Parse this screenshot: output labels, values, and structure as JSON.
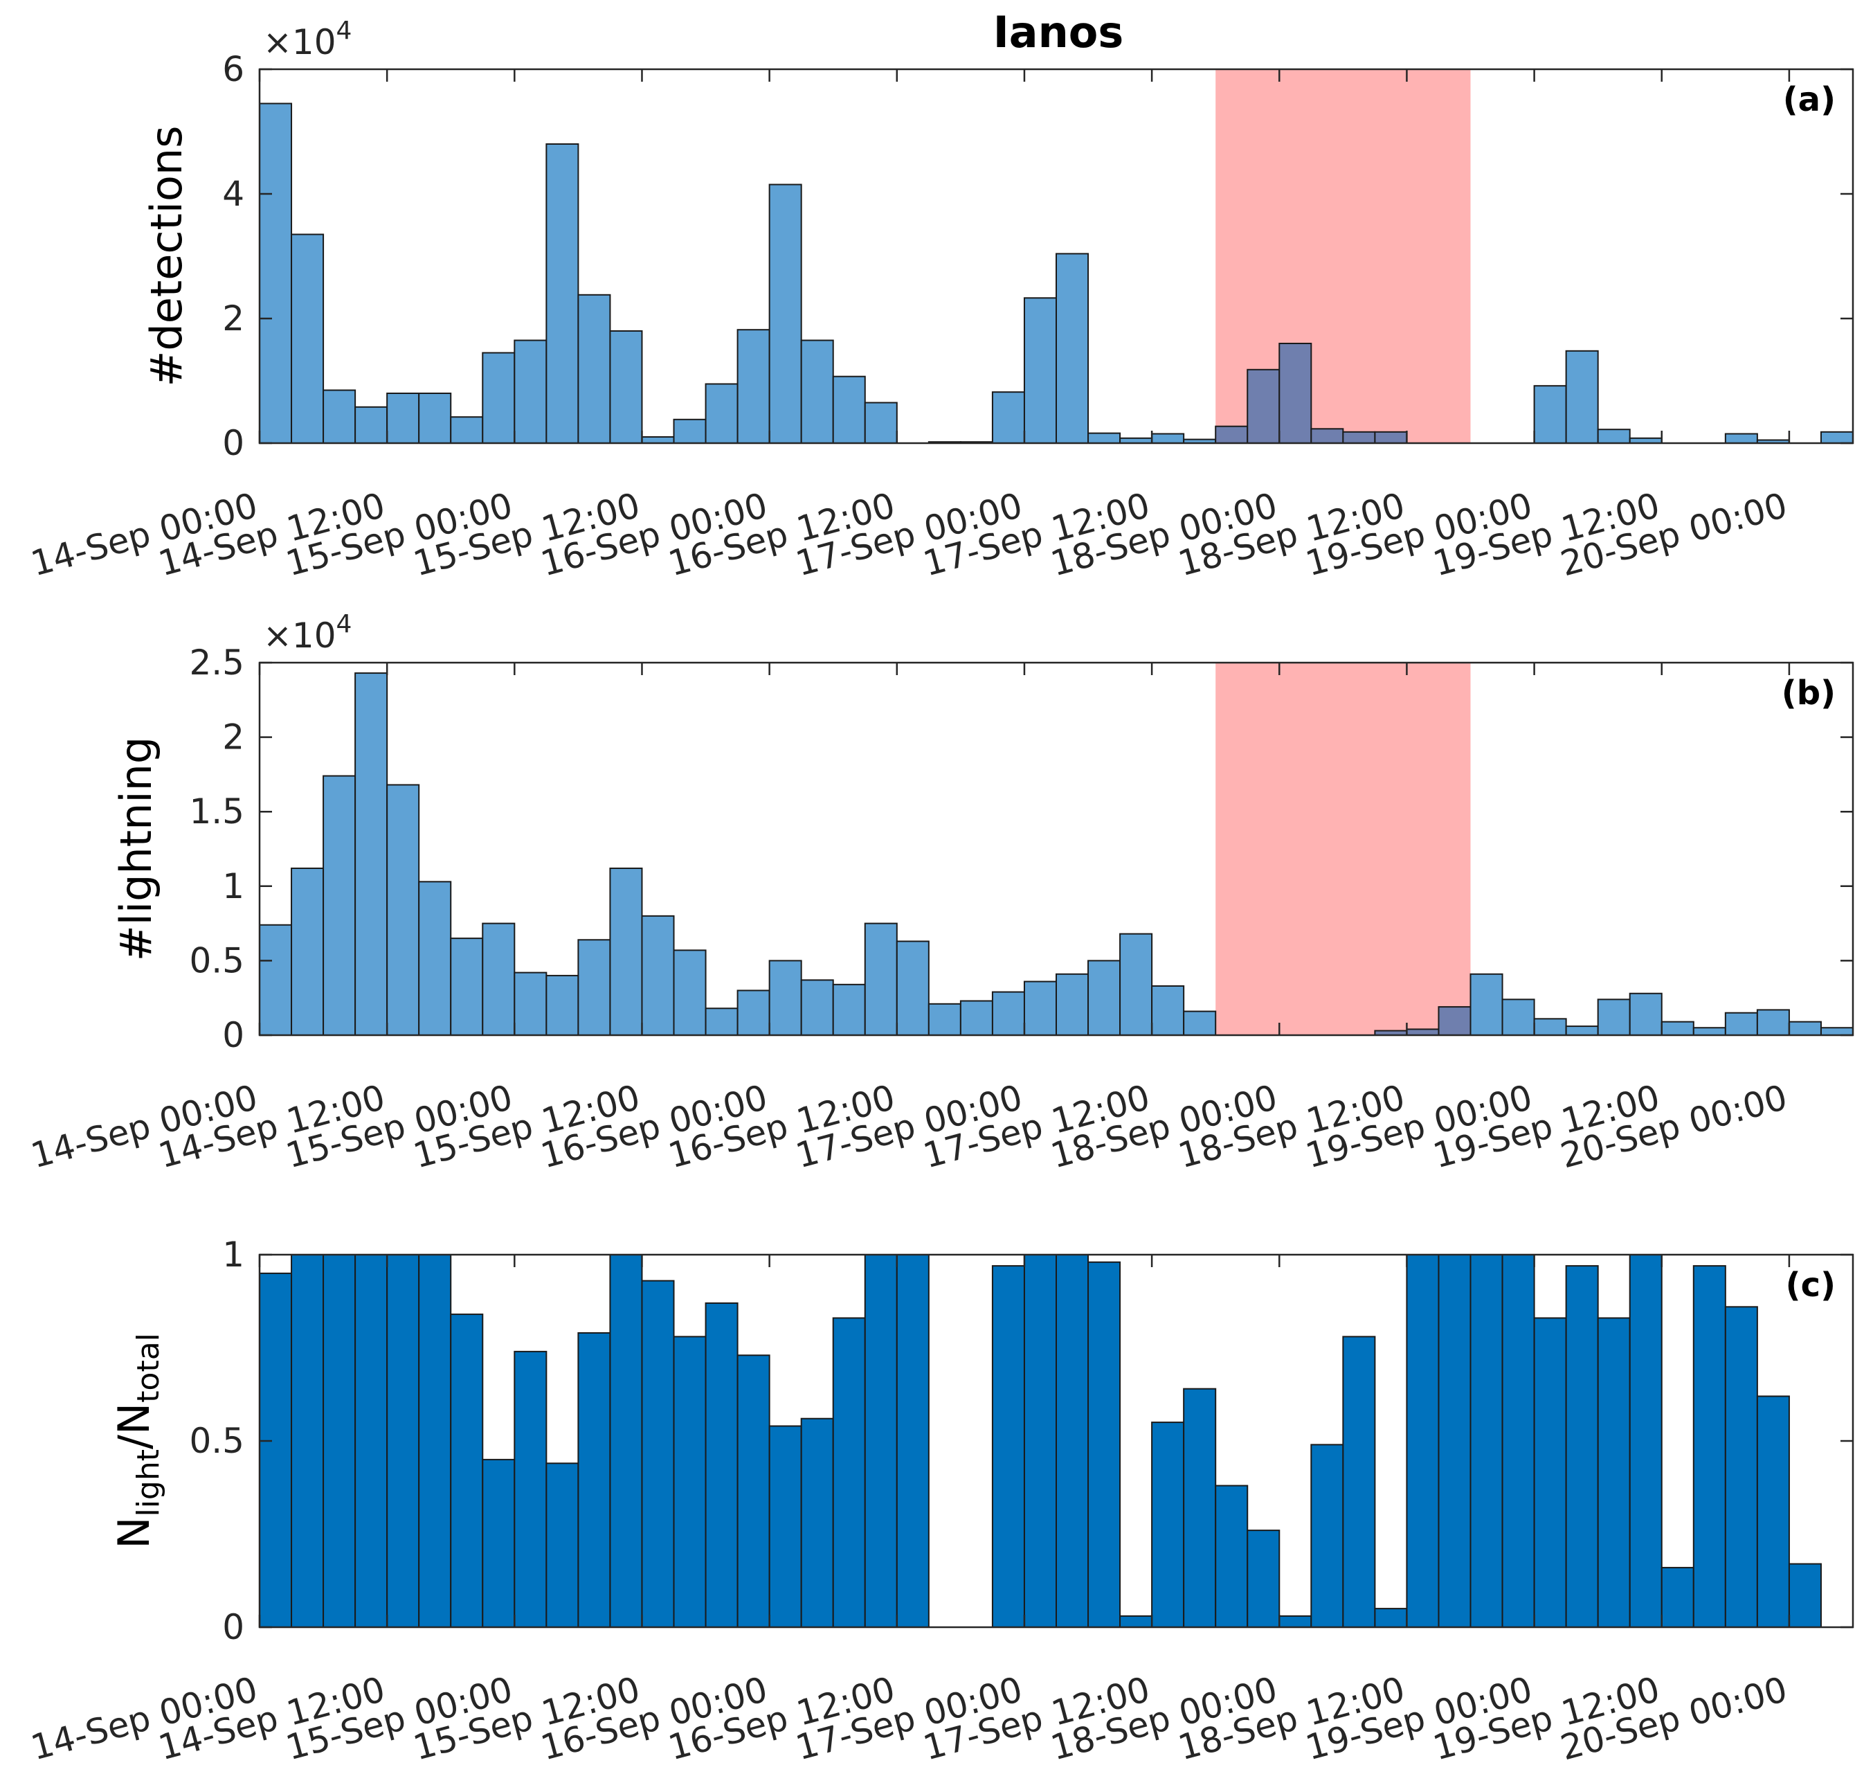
{
  "title": "Ianos",
  "colors": {
    "bar_light": "#5fa2d5",
    "bar_dark": "#0072bd",
    "highlight": "#ffb3b3",
    "overlap": "#6f7fae"
  },
  "chart_data": [
    {
      "type": "bar",
      "panel_label": "(a)",
      "ylabel": "#detections",
      "exponent_label": "×10^4",
      "ylim": [
        0,
        6
      ],
      "yticks": [
        "0",
        "2",
        "4",
        "6"
      ],
      "x_start": "14-Sep 00:00",
      "bin_hours": 3,
      "xtick_labels": [
        "14-Sep 00:00",
        "14-Sep 12:00",
        "15-Sep 00:00",
        "15-Sep 12:00",
        "16-Sep 00:00",
        "16-Sep 12:00",
        "17-Sep 00:00",
        "17-Sep 12:00",
        "18-Sep 00:00",
        "18-Sep 12:00",
        "19-Sep 00:00",
        "19-Sep 12:00",
        "20-Sep 00:00"
      ],
      "highlight_range": [
        "17-Sep 18:00",
        "18-Sep 18:00"
      ],
      "values": [
        5.45,
        3.35,
        0.85,
        0.58,
        0.8,
        0.8,
        0.42,
        1.45,
        1.65,
        4.8,
        2.38,
        1.8,
        0.1,
        0.38,
        0.95,
        1.82,
        4.15,
        1.65,
        1.07,
        0.65,
        0,
        0.02,
        0.02,
        0.82,
        2.33,
        3.04,
        0.16,
        0.08,
        0.15,
        0.06,
        0.27,
        1.18,
        1.6,
        0.23,
        0.18,
        0.18,
        0,
        0,
        0,
        0,
        0.92,
        1.48,
        0.22,
        0.08,
        0,
        0,
        0.15,
        0.05,
        0,
        0.18
      ]
    },
    {
      "type": "bar",
      "panel_label": "(b)",
      "ylabel": "#lightning",
      "exponent_label": "×10^4",
      "ylim": [
        0,
        2.5
      ],
      "yticks": [
        "0",
        "0.5",
        "1",
        "1.5",
        "2",
        "2.5"
      ],
      "x_start": "14-Sep 00:00",
      "bin_hours": 3,
      "xtick_labels": [
        "14-Sep 00:00",
        "14-Sep 12:00",
        "15-Sep 00:00",
        "15-Sep 12:00",
        "16-Sep 00:00",
        "16-Sep 12:00",
        "17-Sep 00:00",
        "17-Sep 12:00",
        "18-Sep 00:00",
        "18-Sep 12:00",
        "19-Sep 00:00",
        "19-Sep 12:00",
        "20-Sep 00:00"
      ],
      "highlight_range": [
        "17-Sep 18:00",
        "18-Sep 18:00"
      ],
      "values": [
        0.74,
        1.12,
        1.74,
        2.43,
        1.68,
        1.03,
        0.65,
        0.75,
        0.42,
        0.4,
        0.64,
        1.12,
        0.8,
        0.57,
        0.18,
        0.3,
        0.5,
        0.37,
        0.34,
        0.75,
        0.63,
        0.21,
        0.23,
        0.29,
        0.36,
        0.41,
        0.5,
        0.68,
        0.33,
        0.16,
        0,
        0,
        0,
        0,
        0,
        0.03,
        0.04,
        0.19,
        0.41,
        0.24,
        0.11,
        0.06,
        0.24,
        0.28,
        0.09,
        0.05,
        0.15,
        0.17,
        0.09,
        0.05
      ]
    },
    {
      "type": "bar",
      "panel_label": "(c)",
      "ylabel_main": "N",
      "ylabel_sub1": "light",
      "ylabel_mid": "/N",
      "ylabel_sub2": "total",
      "ylim": [
        0,
        1
      ],
      "yticks": [
        "0",
        "0.5",
        "1"
      ],
      "x_start": "14-Sep 00:00",
      "bin_hours": 3,
      "xtick_labels": [
        "14-Sep 00:00",
        "14-Sep 12:00",
        "15-Sep 00:00",
        "15-Sep 12:00",
        "16-Sep 00:00",
        "16-Sep 12:00",
        "17-Sep 00:00",
        "17-Sep 12:00",
        "18-Sep 00:00",
        "18-Sep 12:00",
        "19-Sep 00:00",
        "19-Sep 12:00",
        "20-Sep 00:00"
      ],
      "values": [
        0.95,
        1,
        1,
        1,
        1,
        1,
        0.84,
        0.45,
        0.74,
        0.44,
        0.79,
        1,
        0.93,
        0.78,
        0.87,
        0.73,
        0.54,
        0.56,
        0.83,
        1,
        1,
        0,
        0,
        0.97,
        1,
        1,
        0.98,
        0.03,
        0.55,
        0.64,
        0.38,
        0.26,
        0.03,
        0.49,
        0.78,
        0.05,
        1,
        1,
        1,
        1,
        0.83,
        0.97,
        0.83,
        1,
        0.16,
        0.97,
        0.86,
        0.62,
        0.17,
        0
      ]
    }
  ]
}
